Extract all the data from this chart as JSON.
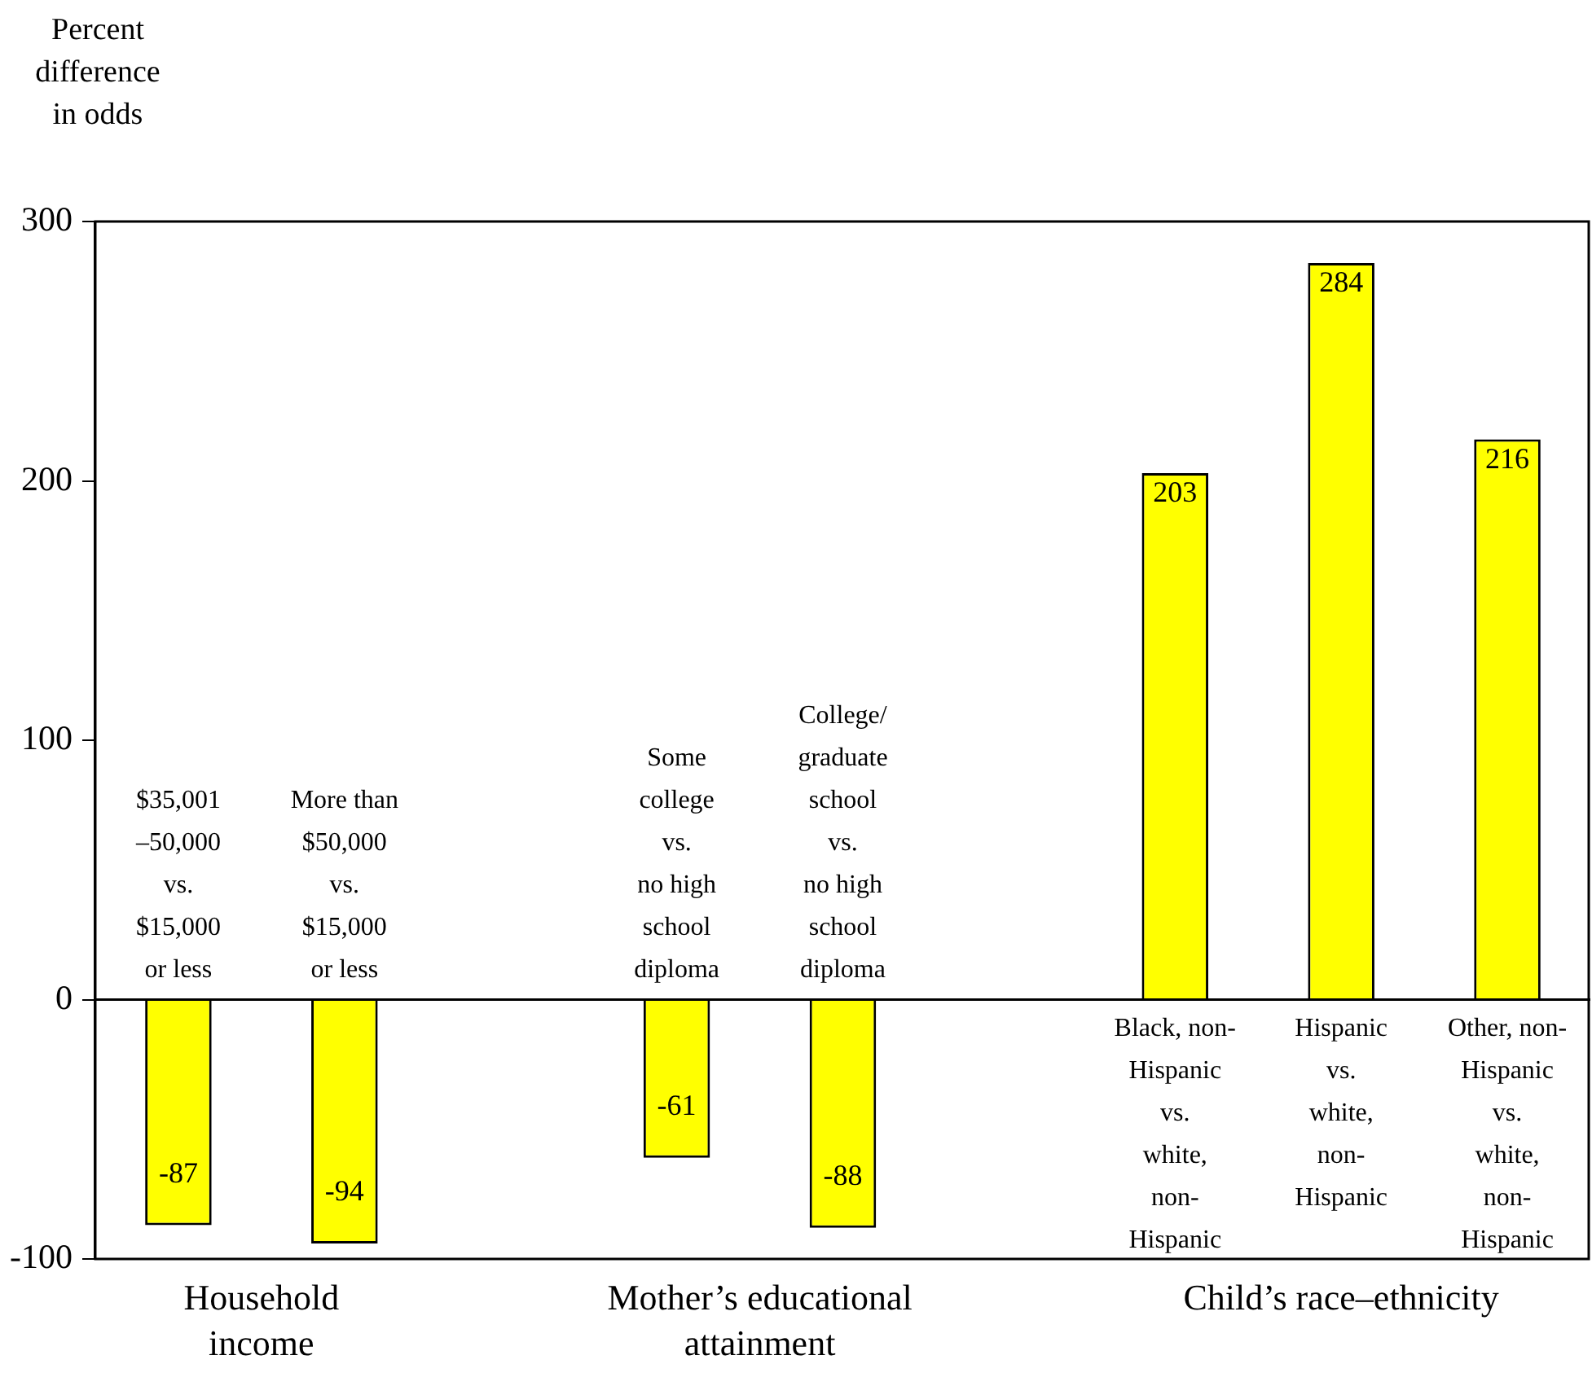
{
  "chart_data": {
    "type": "bar",
    "ylabel": "Percent\ndifference\nin odds",
    "categories": [
      "$35,001\n–50,000\nvs.\n$15,000\nor less",
      "More than\n$50,000\nvs.\n$15,000\nor less",
      null,
      "Some\ncollege\nvs.\nno high\nschool\ndiploma",
      "College/\ngraduate\nschool\nvs.\nno high\nschool\ndiploma",
      null,
      "Black, non-\nHispanic\nvs.\nwhite,\nnon-\nHispanic",
      "Hispanic\nvs.\nwhite,\nnon-\nHispanic",
      "Other, non-\nHispanic\nvs.\nwhite,\nnon-\nHispanic"
    ],
    "values": [
      -87,
      -94,
      null,
      -61,
      -88,
      null,
      203,
      284,
      216
    ],
    "color": "#ffff00",
    "ylim": [
      -100,
      300
    ],
    "yticks": [
      -100,
      0,
      100,
      200,
      300
    ],
    "grid": false,
    "legend": false,
    "data_labels": true,
    "annotations": [
      "Household\nincome",
      "Mother’s educational\nattainment",
      "Child’s race–ethnicity"
    ]
  }
}
